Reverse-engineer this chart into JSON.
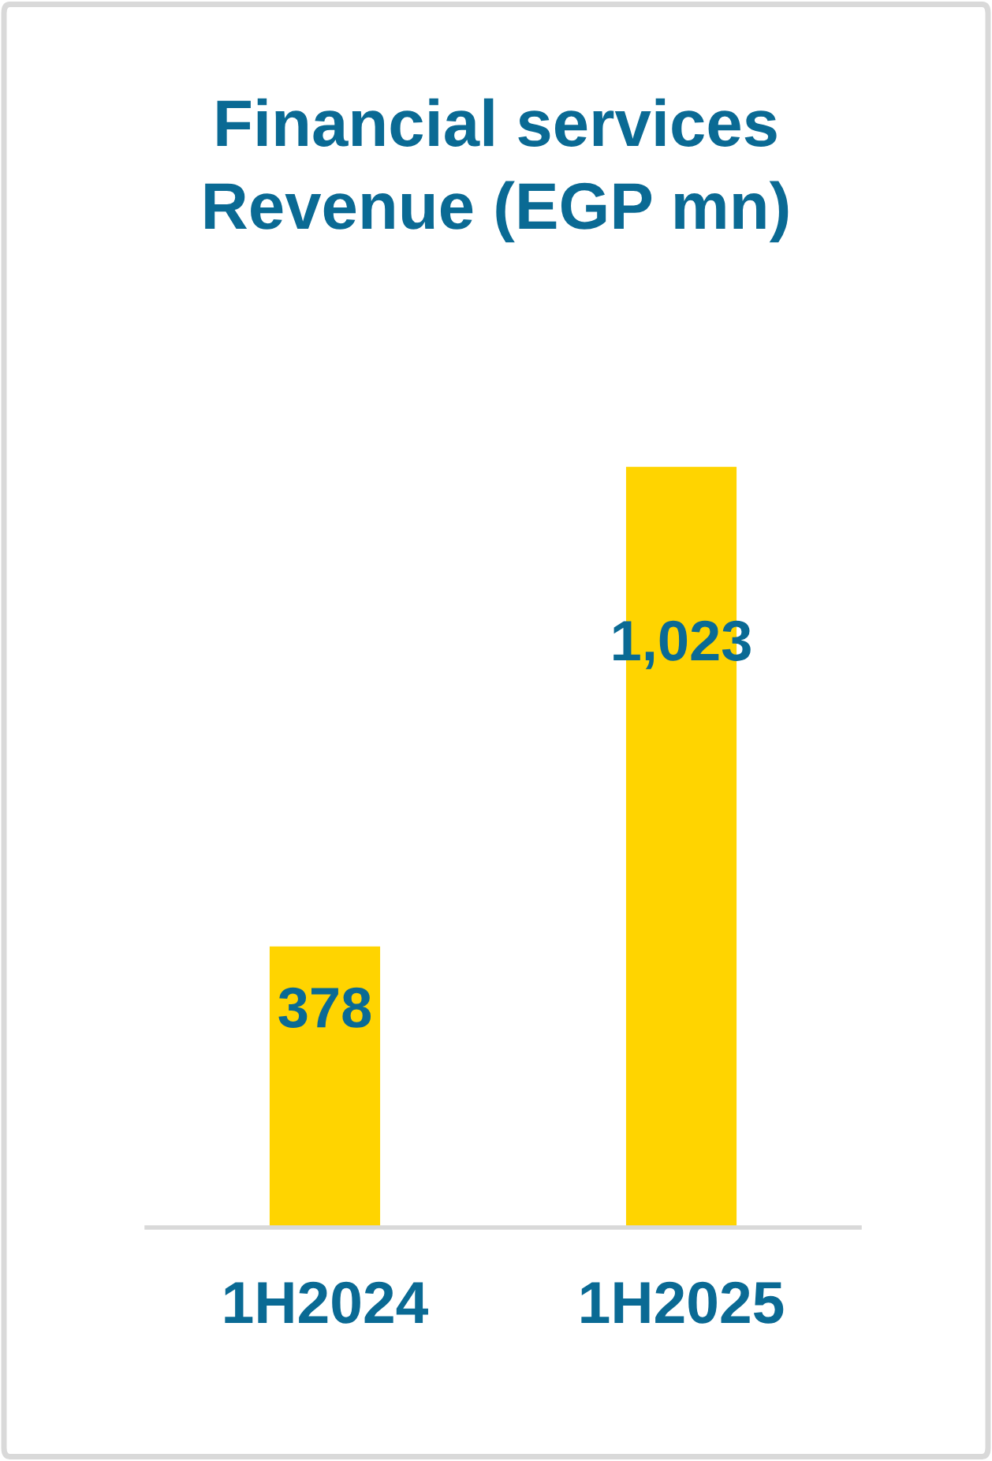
{
  "chart_data": {
    "type": "bar",
    "title": "Financial services\nRevenue (EGP mn)",
    "categories": [
      "1H2024",
      "1H2025"
    ],
    "values": [
      378,
      1023
    ],
    "color": "#ffd400",
    "value_labels": [
      "378",
      "1,023"
    ]
  }
}
